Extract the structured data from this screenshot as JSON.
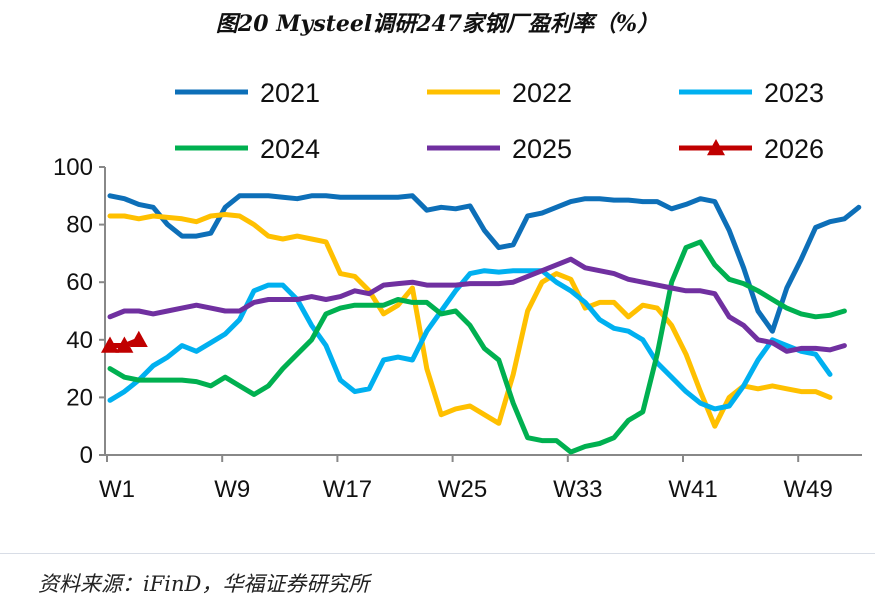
{
  "chart_data": {
    "type": "line",
    "title": "图20 Mysteel调研247家钢厂盈利率（%）",
    "xlabel": "",
    "ylabel": "",
    "ylim": [
      0,
      100
    ],
    "yticks": [
      0,
      20,
      40,
      60,
      80,
      100
    ],
    "xtick_labels": [
      "W1",
      "W9",
      "W17",
      "W25",
      "W33",
      "W41",
      "W49"
    ],
    "legend_position": "top",
    "grid": false,
    "series": [
      {
        "name": "2021",
        "color": "#0d6fb8",
        "marker": "none",
        "values": [
          90,
          89,
          87,
          86,
          80,
          76,
          76,
          77,
          86,
          90,
          90,
          90,
          89.5,
          89,
          90,
          90,
          89.5,
          89.5,
          89.5,
          89.5,
          89.5,
          90,
          85,
          86,
          85.5,
          86.5,
          78,
          72,
          73,
          83,
          84,
          86,
          88,
          89,
          89,
          88.5,
          88.5,
          88,
          88,
          85.5,
          87,
          89,
          88,
          78,
          65,
          50,
          43,
          58,
          68,
          79,
          81,
          82,
          86
        ]
      },
      {
        "name": "2022",
        "color": "#ffc000",
        "marker": "none",
        "values": [
          83,
          83,
          82,
          83,
          82.5,
          82,
          81,
          83,
          83.5,
          83,
          80,
          76,
          75,
          76,
          75,
          74,
          63,
          62,
          57,
          49,
          52,
          58,
          30,
          14,
          16,
          17,
          14,
          11,
          28,
          50,
          60,
          63,
          61,
          51,
          53,
          53,
          48,
          52,
          51,
          45,
          35,
          22,
          10,
          20,
          24,
          23,
          24,
          23,
          22,
          22,
          20
        ]
      },
      {
        "name": "2023",
        "color": "#00b0f0",
        "marker": "none",
        "values": [
          19,
          22,
          26,
          31,
          34,
          38,
          36,
          39,
          42,
          47,
          57,
          59,
          59,
          54,
          45,
          38,
          26,
          22,
          23,
          33,
          34,
          33,
          43,
          50,
          57,
          63,
          64,
          63.5,
          64,
          64,
          64,
          60,
          57,
          53,
          47,
          44,
          43,
          40,
          32,
          27,
          22,
          18,
          16,
          17,
          24,
          33,
          40,
          38,
          36,
          35,
          28
        ]
      },
      {
        "name": "2024",
        "color": "#00b050",
        "marker": "none",
        "values": [
          30,
          27,
          26,
          26,
          26,
          26,
          25.5,
          24,
          27,
          24,
          21,
          24,
          30,
          35,
          40,
          49,
          51,
          52,
          52,
          52,
          54,
          53,
          53,
          49,
          50,
          45,
          37,
          33,
          18,
          6,
          5,
          5,
          1,
          3,
          4,
          6,
          12,
          15,
          35,
          60,
          72,
          74,
          66,
          61,
          59.5,
          57,
          54,
          51,
          49,
          48,
          48.5,
          50
        ]
      },
      {
        "name": "2025",
        "color": "#7030a0",
        "marker": "none",
        "values": [
          48,
          50,
          50,
          49,
          50,
          51,
          52,
          51,
          50,
          50,
          53,
          54,
          54,
          54,
          55,
          54,
          55,
          57,
          56,
          59,
          59.5,
          60,
          59,
          59,
          59,
          59.5,
          59.5,
          59.5,
          60,
          62,
          64,
          66,
          68,
          65,
          64,
          63,
          61,
          60,
          59,
          58,
          57,
          57,
          56,
          48,
          45,
          40,
          39,
          36,
          37,
          37,
          36.5,
          38
        ]
      },
      {
        "name": "2026",
        "color": "#c00000",
        "marker": "triangle",
        "values": [
          38,
          38,
          40
        ]
      }
    ]
  },
  "source": "资料来源：iFinD，华福证券研究所"
}
